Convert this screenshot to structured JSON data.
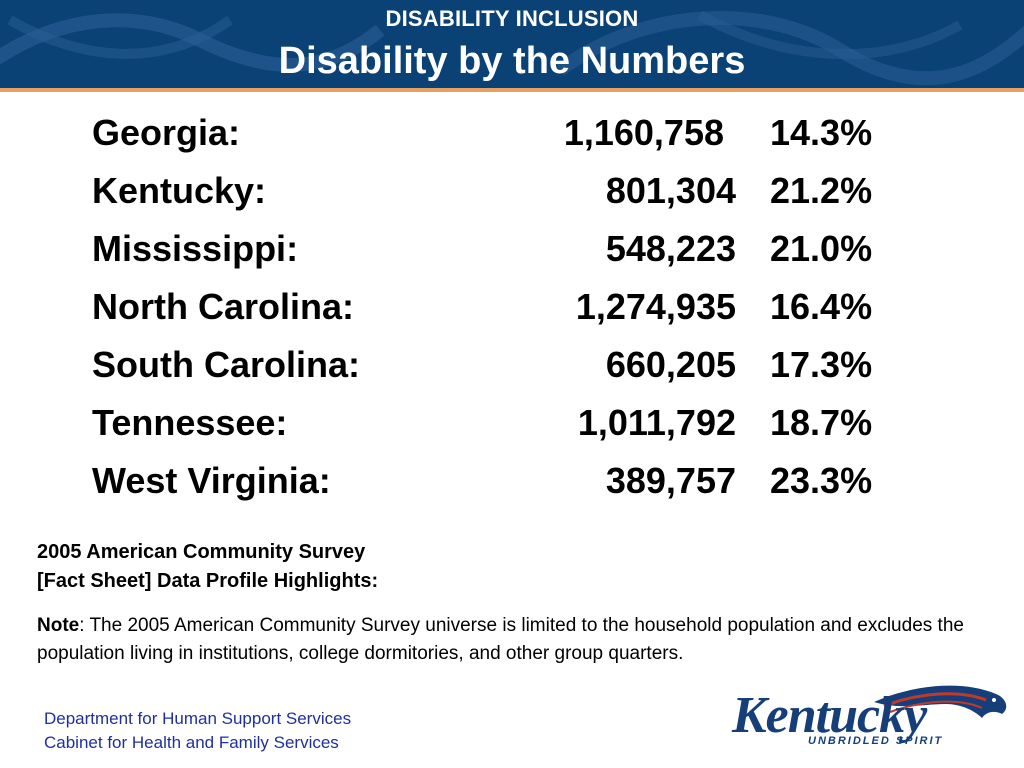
{
  "header": {
    "kicker": "DISABILITY INCLUSION",
    "title": "Disability by the Numbers",
    "background_color": "#0b4275",
    "accent_color": "#e3a060"
  },
  "stats": [
    {
      "state": "Georgia:",
      "count": "1,160,758",
      "percent": "14.3%"
    },
    {
      "state": "Kentucky:",
      "count": "801,304",
      "percent": "21.2%"
    },
    {
      "state": "Mississippi:",
      "count": "548,223",
      "percent": "21.0%"
    },
    {
      "state": "North Carolina:",
      "count": "1,274,935",
      "percent": "16.4%"
    },
    {
      "state": "South Carolina:",
      "count": "660,205",
      "percent": "17.3%"
    },
    {
      "state": "Tennessee:",
      "count": "1,011,792",
      "percent": "18.7%"
    },
    {
      "state": "West Virginia:",
      "count": "389,757",
      "percent": "23.3%"
    }
  ],
  "source": {
    "line1": "2005 American Community Survey",
    "line2": "[Fact Sheet] Data Profile Highlights:"
  },
  "note": {
    "label": "Note",
    "text": ": The 2005 American Community Survey universe is limited to the household population and excludes the population living in institutions, college dormitories, and other group quarters."
  },
  "footer": {
    "line1": "Department for Human Support Services",
    "line2": "Cabinet for Health and Family Services"
  },
  "logo": {
    "wordmark": "Kentucky",
    "tagline": "UNBRIDLED SPIRIT",
    "icon": "horse-head-icon"
  }
}
